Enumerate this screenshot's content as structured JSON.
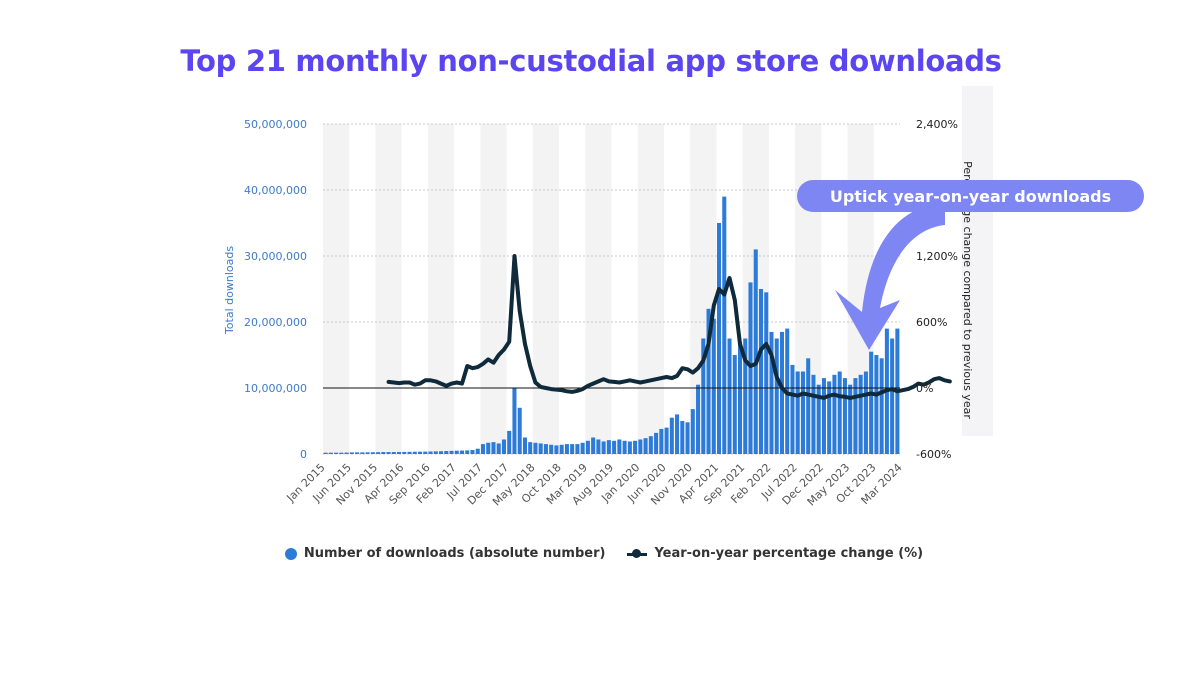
{
  "title": "Top 21 monthly non-custodial app store downloads",
  "callout": "Uptick year-on-year downloads",
  "legend": {
    "downloads": "Number of downloads (absolute number)",
    "yoy": "Year-on-year percentage change (%)"
  },
  "colors": {
    "title": "#5b45f0",
    "bars": "#2d7bd8",
    "line": "#0f2a3a",
    "callout": "#7d86f2"
  },
  "chart_data": {
    "type": "bar",
    "title": "Top 21 monthly non-custodial app store downloads",
    "ylabel": "Total downloads",
    "y2label": "Percentage change compared to previous year",
    "ylim": [
      0,
      50000000
    ],
    "y2lim": [
      -600,
      2400
    ],
    "yticks": [
      "0",
      "10,000,000",
      "20,000,000",
      "30,000,000",
      "40,000,000",
      "50,000,000"
    ],
    "y2ticks": [
      "-600%",
      "0%",
      "600%",
      "1,200%",
      "",
      "2,400%"
    ],
    "xticks": [
      "Jan 2015",
      "Jun 2015",
      "Nov 2015",
      "Apr 2016",
      "Sep 2016",
      "Feb 2017",
      "Jul 2017",
      "Dec 2017",
      "May 2018",
      "Oct 2018",
      "Mar 2019",
      "Aug 2019",
      "Jan 2020",
      "Jun 2020",
      "Nov 2020",
      "Apr 2021",
      "Sep 2021",
      "Feb 2022",
      "Jul 2022",
      "Dec 2022",
      "May 2023",
      "Oct 2023",
      "Mar 2024"
    ],
    "months_start": "Jan 2015",
    "series": [
      {
        "name": "Number of downloads (absolute number)",
        "type": "bar",
        "axis": "left",
        "values": [
          200000,
          200000,
          200000,
          200000,
          220000,
          250000,
          250000,
          250000,
          260000,
          270000,
          280000,
          300000,
          300000,
          300000,
          310000,
          320000,
          330000,
          340000,
          350000,
          360000,
          380000,
          400000,
          420000,
          450000,
          470000,
          500000,
          520000,
          550000,
          600000,
          800000,
          1500000,
          1700000,
          1800000,
          1600000,
          2200000,
          3500000,
          10000000,
          7000000,
          2500000,
          1800000,
          1700000,
          1600000,
          1500000,
          1400000,
          1300000,
          1400000,
          1500000,
          1500000,
          1500000,
          1700000,
          2000000,
          2500000,
          2200000,
          1900000,
          2100000,
          2000000,
          2200000,
          2000000,
          1900000,
          2000000,
          2200000,
          2400000,
          2700000,
          3200000,
          3800000,
          4000000,
          5500000,
          6000000,
          5000000,
          4800000,
          6800000,
          10500000,
          17500000,
          22000000,
          20500000,
          35000000,
          39000000,
          17500000,
          15000000,
          17000000,
          17500000,
          26000000,
          31000000,
          25000000,
          24500000,
          18500000,
          17500000,
          18500000,
          19000000,
          13500000,
          12500000,
          12500000,
          14500000,
          12000000,
          10500000,
          11500000,
          11000000,
          12000000,
          12500000,
          11500000,
          10500000,
          11500000,
          12000000,
          12500000,
          15500000,
          15000000,
          14500000,
          19000000,
          17500000,
          19000000
        ]
      },
      {
        "name": "Year-on-year percentage change (%)",
        "type": "line",
        "axis": "right",
        "start_index": 12,
        "values": [
          55,
          50,
          45,
          50,
          50,
          30,
          40,
          70,
          70,
          60,
          40,
          20,
          40,
          50,
          40,
          200,
          180,
          190,
          220,
          260,
          230,
          300,
          350,
          420,
          1200,
          700,
          400,
          200,
          50,
          10,
          0,
          -10,
          -15,
          -20,
          -30,
          -35,
          -25,
          -10,
          20,
          40,
          60,
          80,
          60,
          55,
          50,
          60,
          70,
          60,
          50,
          60,
          70,
          80,
          90,
          100,
          90,
          110,
          180,
          170,
          140,
          180,
          250,
          400,
          750,
          900,
          850,
          1000,
          800,
          400,
          250,
          200,
          220,
          350,
          400,
          300,
          100,
          0,
          -50,
          -60,
          -70,
          -50,
          -60,
          -70,
          -80,
          -90,
          -70,
          -60,
          -75,
          -80,
          -90,
          -80,
          -70,
          -60,
          -50,
          -60,
          -40,
          -20,
          -10,
          -30,
          -20,
          -10,
          10,
          40,
          30,
          50,
          80,
          90,
          70,
          60
        ]
      }
    ]
  }
}
